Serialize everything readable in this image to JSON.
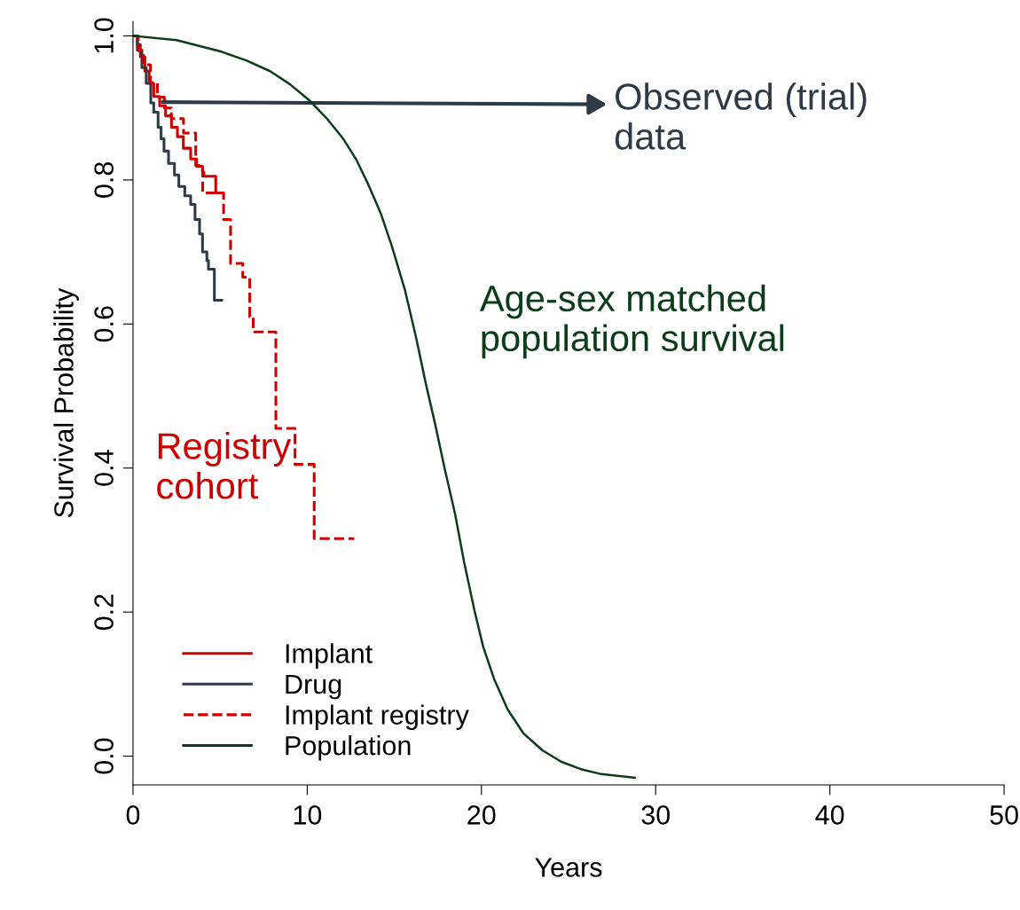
{
  "chart_data": {
    "type": "line",
    "xlabel": "Years",
    "ylabel": "Survival Probability",
    "xlim": [
      0,
      50
    ],
    "ylim": [
      -0.04,
      1.02
    ],
    "xticks": [
      0,
      10,
      20,
      30,
      40,
      50
    ],
    "yticks": [
      {
        "value": 0,
        "label": "0.0"
      },
      {
        "value": 0.2,
        "label": "0.2"
      },
      {
        "value": 0.4,
        "label": "0.4"
      },
      {
        "value": 0.6,
        "label": "0.6"
      },
      {
        "value": 0.8,
        "label": "0.8"
      },
      {
        "value": 1,
        "label": "1.0"
      }
    ],
    "grid": false,
    "legend": "bottom left",
    "series": [
      {
        "name": "Implant",
        "type": "step",
        "line_style": "solid",
        "color": "#cc0000",
        "x": [
          0,
          0.25,
          0.42,
          0.68,
          0.93,
          1.19,
          1.53,
          1.87,
          2.21,
          2.55,
          2.89,
          3.31,
          3.65,
          3.99,
          4.07,
          4.75,
          5.09
        ],
        "values": [
          1.0,
          0.988,
          0.971,
          0.951,
          0.934,
          0.916,
          0.903,
          0.889,
          0.873,
          0.86,
          0.844,
          0.829,
          0.819,
          0.811,
          0.805,
          0.782,
          0.782
        ]
      },
      {
        "name": "Drug",
        "type": "step",
        "line_style": "solid",
        "color": "#2e3a46",
        "x": [
          0,
          0.25,
          0.51,
          0.76,
          1.02,
          1.19,
          1.44,
          1.61,
          1.78,
          2.04,
          2.38,
          2.63,
          2.97,
          3.31,
          3.56,
          3.82,
          3.99,
          4.24,
          4.33,
          4.67,
          5.09
        ],
        "values": [
          1.0,
          0.98,
          0.956,
          0.934,
          0.907,
          0.894,
          0.873,
          0.857,
          0.84,
          0.823,
          0.807,
          0.791,
          0.778,
          0.766,
          0.745,
          0.725,
          0.7,
          0.688,
          0.676,
          0.633,
          0.633
        ]
      },
      {
        "name": "Implant registry",
        "type": "step",
        "line_style": "dashed",
        "color": "#cc0000",
        "x": [
          0,
          0.3,
          0.6,
          1.0,
          1.4,
          1.8,
          2.2,
          2.9,
          3.6,
          4.0,
          5.2,
          5.6,
          6.3,
          6.7,
          6.9,
          8.2,
          9.3,
          10.4,
          12.7
        ],
        "values": [
          1.0,
          0.98,
          0.96,
          0.935,
          0.915,
          0.9,
          0.885,
          0.865,
          0.82,
          0.782,
          0.745,
          0.684,
          0.665,
          0.61,
          0.589,
          0.455,
          0.405,
          0.302,
          0.302
        ]
      },
      {
        "name": "Population",
        "type": "line",
        "line_style": "solid",
        "color": "#0b3d1a",
        "x": [
          0,
          2.5,
          5.08,
          6.5,
          7.87,
          9.0,
          10.1,
          11.1,
          12.07,
          12.8,
          13.46,
          14.2,
          14.86,
          15.6,
          16.26,
          16.8,
          17.37,
          17.9,
          18.49,
          19.0,
          19.61,
          20.1,
          20.73,
          21.5,
          22.4,
          23.5,
          24.6,
          25.7,
          26.9,
          28.8
        ],
        "values": [
          1.0,
          0.994,
          0.978,
          0.966,
          0.951,
          0.933,
          0.911,
          0.886,
          0.857,
          0.829,
          0.796,
          0.755,
          0.708,
          0.648,
          0.58,
          0.518,
          0.458,
          0.398,
          0.336,
          0.27,
          0.201,
          0.152,
          0.107,
          0.065,
          0.032,
          0.008,
          -0.008,
          -0.018,
          -0.025,
          -0.03
        ]
      }
    ],
    "annotations": [
      {
        "text": "Observed (trial)\ndata",
        "x": 1.7,
        "y": 0.908
      },
      "Age-sex matched\npopulation survival",
      "Registry\ncohort"
    ]
  }
}
